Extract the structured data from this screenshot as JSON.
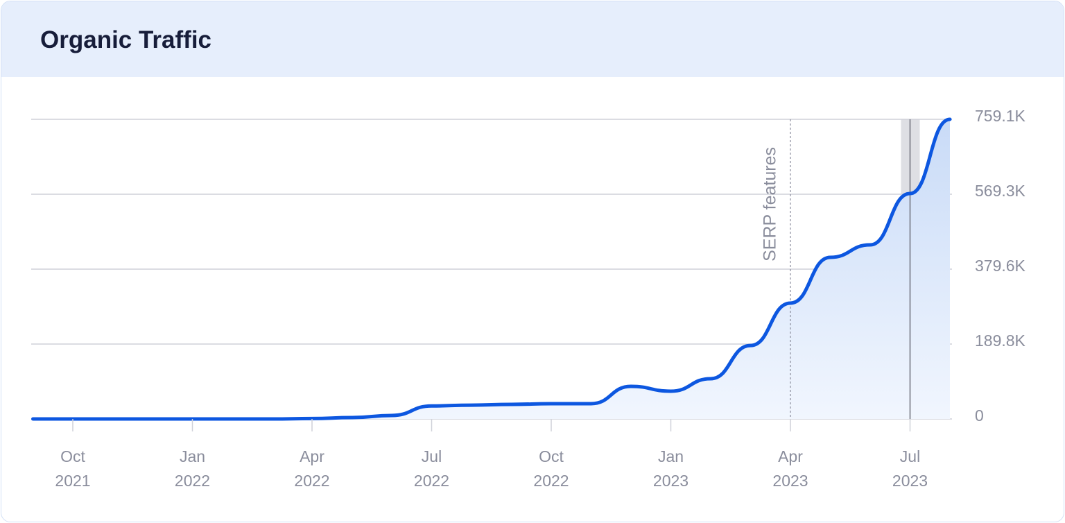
{
  "title": "Organic Traffic",
  "chart_data": {
    "type": "line",
    "x": [
      "Sep 2021",
      "Oct 2021",
      "Nov 2021",
      "Dec 2021",
      "Jan 2022",
      "Feb 2022",
      "Mar 2022",
      "Apr 2022",
      "May 2022",
      "Jun 2022",
      "Jul 2022",
      "Aug 2022",
      "Sep 2022",
      "Oct 2022",
      "Nov 2022",
      "Dec 2022",
      "Jan 2023",
      "Feb 2023",
      "Mar 2023",
      "Apr 2023",
      "May 2023",
      "Jun 2023",
      "Jul 2023",
      "Aug 2023"
    ],
    "values": [
      0,
      0,
      0,
      0,
      0,
      0,
      0,
      1000,
      3500,
      8800,
      33000,
      35000,
      37000,
      38700,
      38700,
      82600,
      70300,
      102000,
      186000,
      293500,
      409500,
      441000,
      571000,
      759100
    ],
    "color": "#0d57e0",
    "ylim": [
      0,
      759100
    ],
    "yticks": [
      0,
      {
        "value": 189800,
        "label": "189.8K"
      },
      {
        "value": 379600,
        "label": "379.6K"
      },
      {
        "value": 569300,
        "label": "569.3K"
      },
      {
        "value": 759100,
        "label": "759.1K"
      }
    ],
    "xticks": [
      "Oct 2021",
      "Jan 2022",
      "Apr 2022",
      "Jul 2022",
      "Oct 2022",
      "Jan 2023",
      "Apr 2023",
      "Jul 2023"
    ],
    "grid": true,
    "annotation": {
      "text": "SERP features",
      "x": "Apr 2023"
    },
    "highlight": "Jul 2023"
  }
}
